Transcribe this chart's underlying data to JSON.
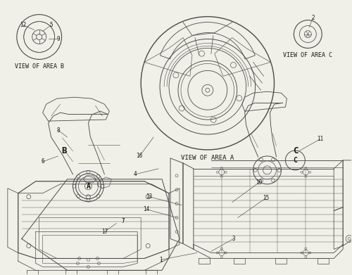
{
  "bg_color": "#f0efe8",
  "line_color": "#4a4a4a",
  "text_color": "#1a1a1a",
  "view_area_a_label": "VIEW OF AREA A",
  "view_area_b_label": "VIEW OF AREA B",
  "view_area_c_label": "VIEW OF AREA C",
  "font_size_part": 5.5,
  "font_size_view": 5.8
}
